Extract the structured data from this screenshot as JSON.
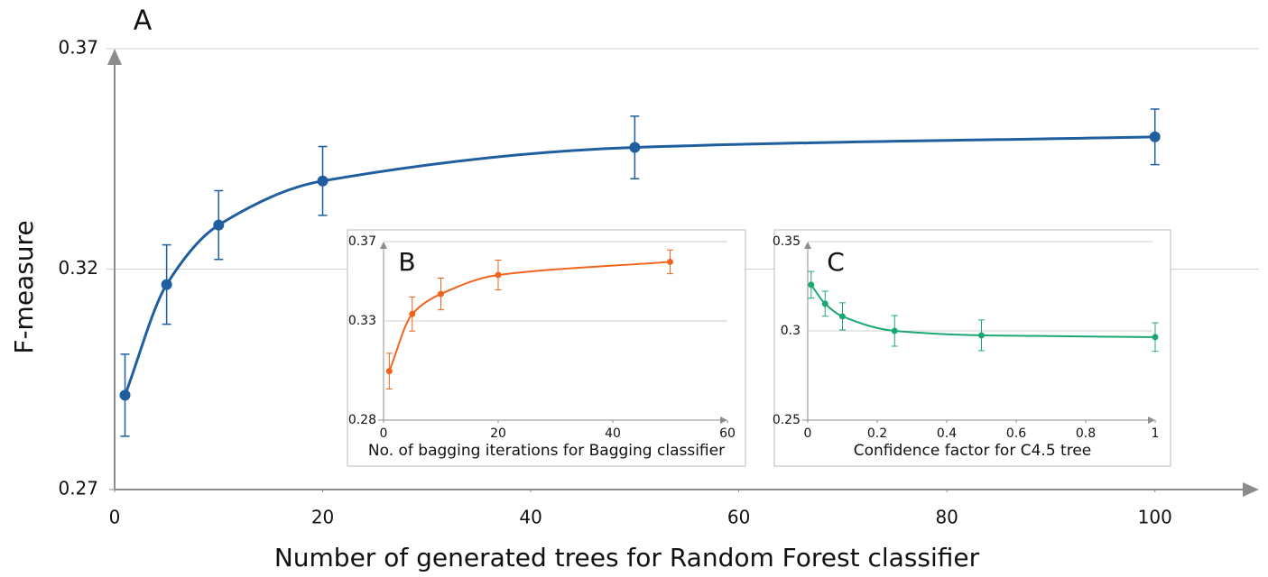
{
  "chart_data": [
    {
      "type": "line",
      "label": "A",
      "x_label": "Number of generated trees for Random Forest classifier",
      "y_label": "F-measure",
      "x": [
        1,
        5,
        10,
        20,
        50,
        100
      ],
      "values": [
        0.2914,
        0.3165,
        0.33,
        0.34,
        0.3476,
        0.35
      ],
      "errors": [
        0.0093,
        0.009,
        0.0078,
        0.0078,
        0.0071,
        0.0063
      ],
      "color": "#1f5fa0",
      "xlim": [
        0,
        110
      ],
      "xticks": [
        0,
        20,
        40,
        60,
        80,
        100
      ],
      "ylim": [
        0.27,
        0.37
      ],
      "yticks": [
        0.27,
        0.32,
        0.37
      ],
      "grid": true
    },
    {
      "type": "line",
      "label": "B",
      "x_label": "No. of bagging iterations for Bagging classifier",
      "x": [
        1,
        5,
        10,
        20,
        50
      ],
      "values": [
        0.3047,
        0.3335,
        0.3436,
        0.3532,
        0.3598
      ],
      "errors": [
        0.009,
        0.0086,
        0.008,
        0.0075,
        0.006
      ],
      "color": "#f0641e",
      "xlim": [
        0,
        60
      ],
      "xticks": [
        0,
        20,
        40,
        60
      ],
      "ylim": [
        0.28,
        0.37
      ],
      "yticks": [
        0.28,
        0.33,
        0.37
      ],
      "grid": true
    },
    {
      "type": "line",
      "label": "C",
      "x_label": "Confidence factor for C4.5 tree",
      "x": [
        0.01,
        0.05,
        0.1,
        0.25,
        0.5,
        1
      ],
      "values": [
        0.3258,
        0.3152,
        0.3081,
        0.3,
        0.2975,
        0.2965
      ],
      "errors": [
        0.0075,
        0.007,
        0.0076,
        0.0086,
        0.0086,
        0.008
      ],
      "color": "#1aa870",
      "xlim": [
        0,
        1
      ],
      "xticks": [
        0,
        0.2,
        0.4,
        0.6,
        0.8,
        1
      ],
      "ylim": [
        0.25,
        0.35
      ],
      "yticks": [
        0.25,
        0.3,
        0.35
      ],
      "grid": true
    }
  ]
}
